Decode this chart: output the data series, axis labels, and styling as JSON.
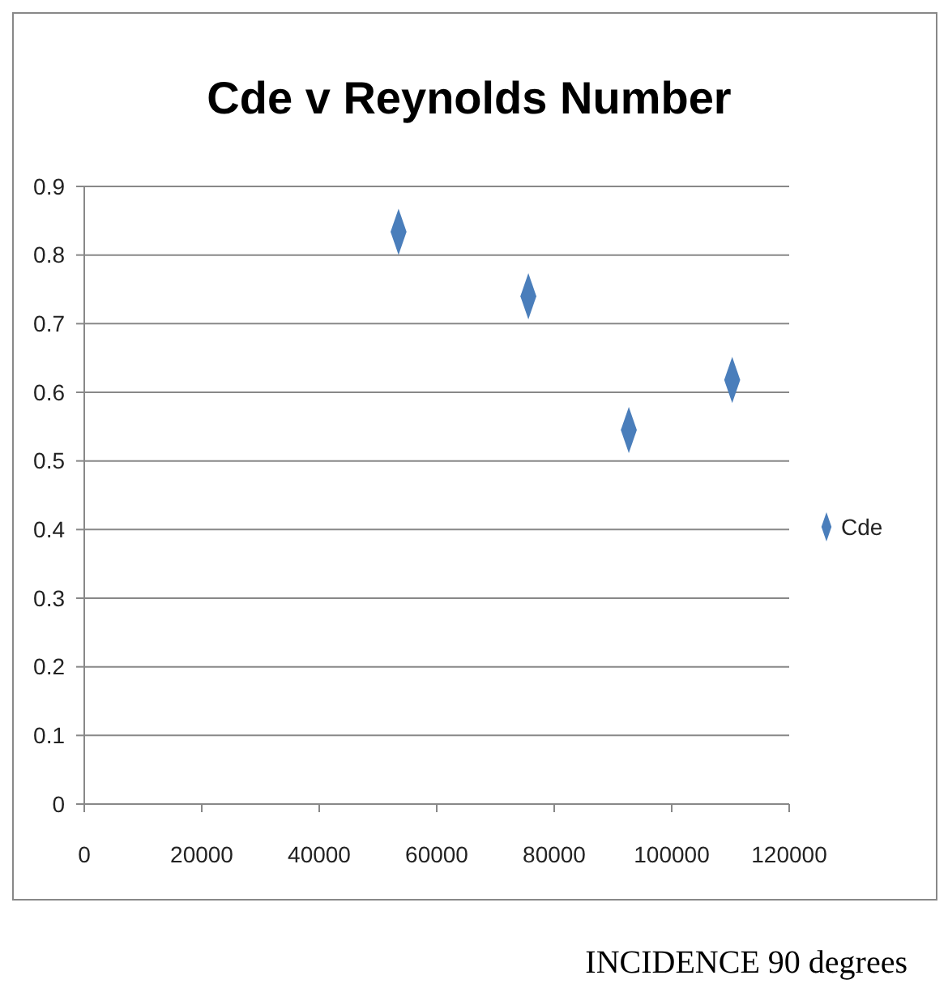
{
  "chart_data": {
    "type": "scatter",
    "title": "Cde v Reynolds Number",
    "x": [
      53500,
      75600,
      92700,
      110300
    ],
    "series": [
      {
        "name": "Cde",
        "color": "#4a7ebb",
        "values": [
          0.834,
          0.74,
          0.545,
          0.618
        ]
      }
    ],
    "xlim": [
      0,
      120000
    ],
    "xticks": [
      0,
      20000,
      40000,
      60000,
      80000,
      100000,
      120000
    ],
    "ylim": [
      0,
      0.9
    ],
    "yticks": [
      0,
      0.1,
      0.2,
      0.3,
      0.4,
      0.5,
      0.6,
      0.7,
      0.8,
      0.9
    ],
    "grid": "y",
    "legend": "right",
    "marker": "diamond",
    "annotations": [
      "INCIDENCE 90 degrees"
    ]
  }
}
